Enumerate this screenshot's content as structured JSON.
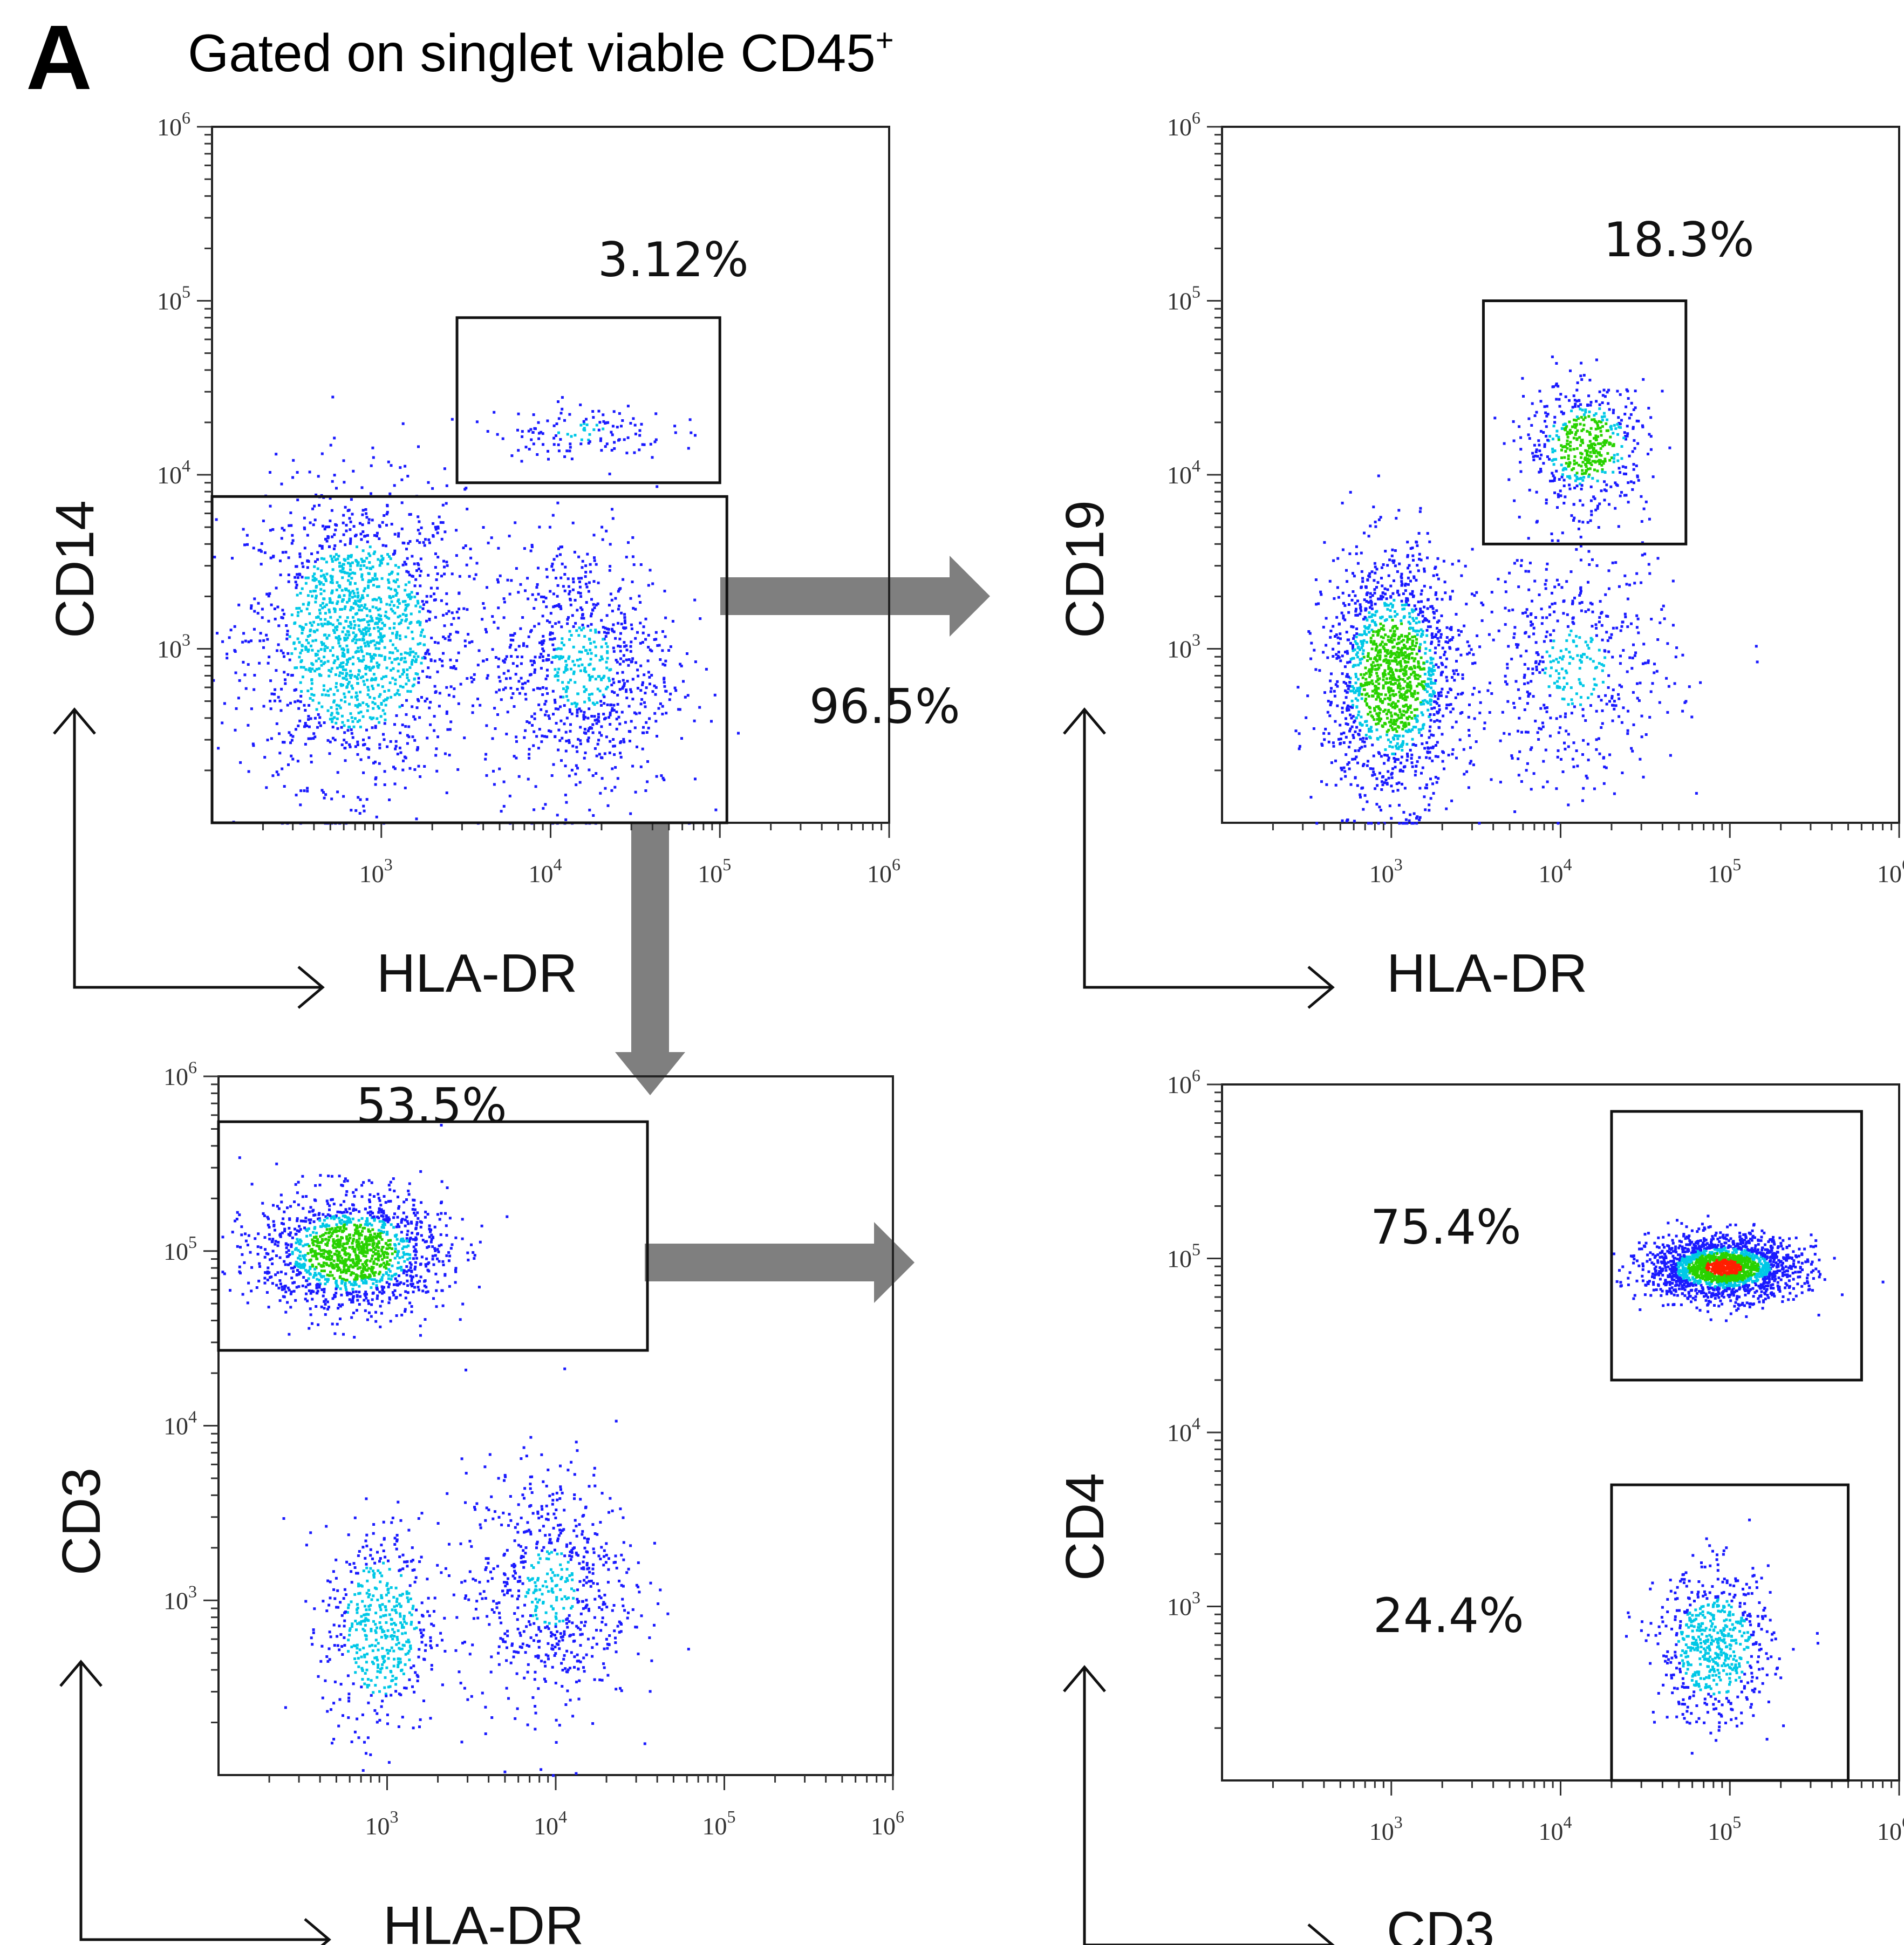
{
  "panel_letter": "A",
  "gating_title": {
    "main": "Gated on singlet viable CD45",
    "superscript": "+"
  },
  "tick_labels": {
    "t3": {
      "base": "10",
      "exp": "3"
    },
    "t4": {
      "base": "10",
      "exp": "4"
    },
    "t5": {
      "base": "10",
      "exp": "5"
    },
    "t6": {
      "base": "10",
      "exp": "6"
    }
  },
  "colors": {
    "low_density": "#1a1aff",
    "mid_density": "#00c8e6",
    "high_density": "#28d200",
    "peak_density": "#ff1e00",
    "gate_line": "#111111",
    "arrow_fill": "#7f7f7f"
  },
  "chart_data": [
    {
      "type": "scatter",
      "xlabel": "HLA-DR",
      "ylabel": "CD14",
      "xscale": "log",
      "yscale": "log",
      "xlim": [
        100,
        1000000
      ],
      "ylim": [
        100,
        1000000
      ],
      "x_ticks": [
        1000,
        10000,
        100000,
        1000000
      ],
      "y_ticks": [
        1000,
        10000,
        100000,
        1000000
      ],
      "gates": [
        {
          "label": "3.12%",
          "x_range": [
            2800,
            100000
          ],
          "y_range": [
            9000,
            80000
          ]
        },
        {
          "label": "96.5%",
          "x_range": [
            100,
            110000
          ],
          "y_range": [
            100,
            7500
          ]
        }
      ],
      "populations": [
        {
          "x_center": 700,
          "y_center": 1200,
          "spread_x": 0.32,
          "spread_y": 0.42,
          "share": 0.62,
          "density": "mid"
        },
        {
          "x_center": 15000,
          "y_center": 800,
          "spread_x": 0.28,
          "spread_y": 0.38,
          "share": 0.33,
          "density": "low"
        },
        {
          "x_center": 15000,
          "y_center": 18000,
          "spread_x": 0.26,
          "spread_y": 0.08,
          "share": 0.05,
          "density": "low"
        }
      ]
    },
    {
      "type": "scatter",
      "xlabel": "HLA-DR",
      "ylabel": "CD19",
      "xscale": "log",
      "yscale": "log",
      "xlim": [
        100,
        1000000
      ],
      "ylim": [
        100,
        1000000
      ],
      "x_ticks": [
        1000,
        10000,
        100000,
        1000000
      ],
      "y_ticks": [
        1000,
        10000,
        100000,
        1000000
      ],
      "gates": [
        {
          "label": "18.3%",
          "x_range": [
            3500,
            55000
          ],
          "y_range": [
            4000,
            100000
          ]
        }
      ],
      "populations": [
        {
          "x_center": 1000,
          "y_center": 700,
          "spread_x": 0.2,
          "spread_y": 0.35,
          "share": 0.6,
          "density": "high"
        },
        {
          "x_center": 14000,
          "y_center": 15000,
          "spread_x": 0.18,
          "spread_y": 0.18,
          "share": 0.2,
          "density": "high"
        },
        {
          "x_center": 12000,
          "y_center": 800,
          "spread_x": 0.3,
          "spread_y": 0.35,
          "share": 0.2,
          "density": "low"
        }
      ]
    },
    {
      "type": "scatter",
      "xlabel": "HLA-DR",
      "ylabel": "CD3",
      "xscale": "log",
      "yscale": "log",
      "xlim": [
        100,
        1000000
      ],
      "ylim": [
        100,
        1000000
      ],
      "x_ticks": [
        1000,
        10000,
        100000,
        1000000
      ],
      "y_ticks": [
        1000,
        10000,
        100000,
        1000000
      ],
      "gates": [
        {
          "label": "53.5%",
          "x_range": [
            100,
            35000
          ],
          "y_range": [
            27000,
            550000
          ]
        }
      ],
      "populations": [
        {
          "x_center": 600,
          "y_center": 100000,
          "spread_x": 0.28,
          "spread_y": 0.17,
          "share": 0.54,
          "density": "high"
        },
        {
          "x_center": 900,
          "y_center": 700,
          "spread_x": 0.17,
          "spread_y": 0.3,
          "share": 0.2,
          "density": "mid"
        },
        {
          "x_center": 9000,
          "y_center": 1200,
          "spread_x": 0.25,
          "spread_y": 0.35,
          "share": 0.26,
          "density": "low"
        }
      ]
    },
    {
      "type": "scatter",
      "xlabel": "CD3",
      "ylabel": "CD4",
      "xscale": "log",
      "yscale": "log",
      "xlim": [
        100,
        1000000
      ],
      "ylim": [
        100,
        1000000
      ],
      "x_ticks": [
        1000,
        10000,
        100000,
        1000000
      ],
      "y_ticks": [
        1000,
        10000,
        100000,
        1000000
      ],
      "gates": [
        {
          "label": "75.4%",
          "x_range": [
            20000,
            600000
          ],
          "y_range": [
            20000,
            700000
          ]
        },
        {
          "label": "24.4%",
          "x_range": [
            20000,
            500000
          ],
          "y_range": [
            100,
            5000
          ]
        }
      ],
      "populations": [
        {
          "x_center": 90000,
          "y_center": 90000,
          "spread_x": 0.22,
          "spread_y": 0.09,
          "share": 0.754,
          "density": "peak"
        },
        {
          "x_center": 80000,
          "y_center": 600,
          "spread_x": 0.17,
          "spread_y": 0.22,
          "share": 0.244,
          "density": "mid"
        }
      ]
    }
  ]
}
